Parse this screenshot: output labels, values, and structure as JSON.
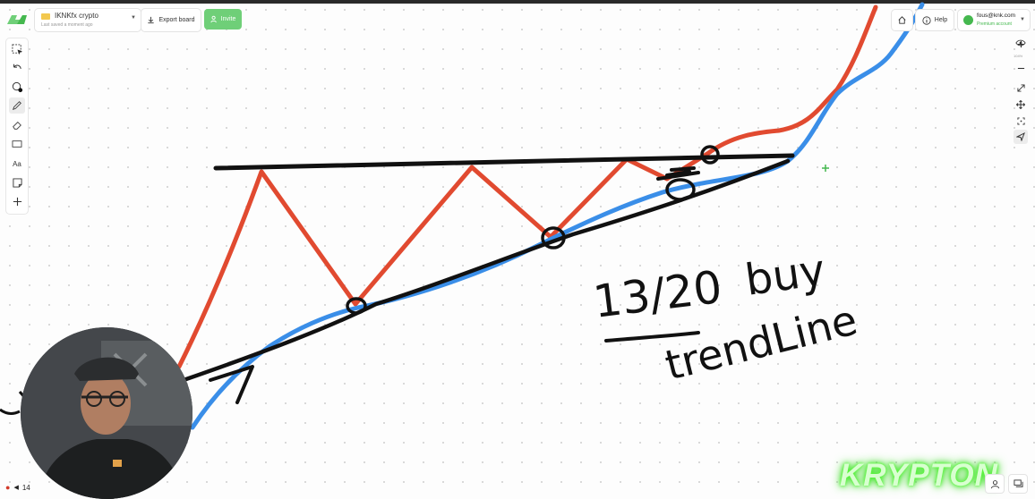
{
  "board": {
    "name": "IKNKfx crypto",
    "subtitle": "Last saved a moment ago"
  },
  "toolbar": {
    "export_label": "Export board",
    "invite_label": "Invite"
  },
  "header_right": {
    "help_label": "Help",
    "account_email": "fous@knk.com",
    "account_plan": "Premium account"
  },
  "right_toolbar": {
    "zoom_level": "104%"
  },
  "left_tools": {
    "text_tool_label": "Aa"
  },
  "bottom": {
    "page_number": "14"
  },
  "annotations": {
    "fraction": "13/20",
    "action": "buy",
    "note": "trendLine"
  },
  "branding": {
    "watermark": "KRYPTON"
  },
  "colors": {
    "accent": "#6fcf78",
    "red_line": "#e14a30",
    "blue_line": "#3a8ee8",
    "ink": "#111111"
  },
  "icons": {
    "logo": "app-logo",
    "export": "download-icon",
    "invite": "user-plus-icon",
    "home": "home-icon",
    "help": "info-icon",
    "visibility": "eye-icon"
  }
}
